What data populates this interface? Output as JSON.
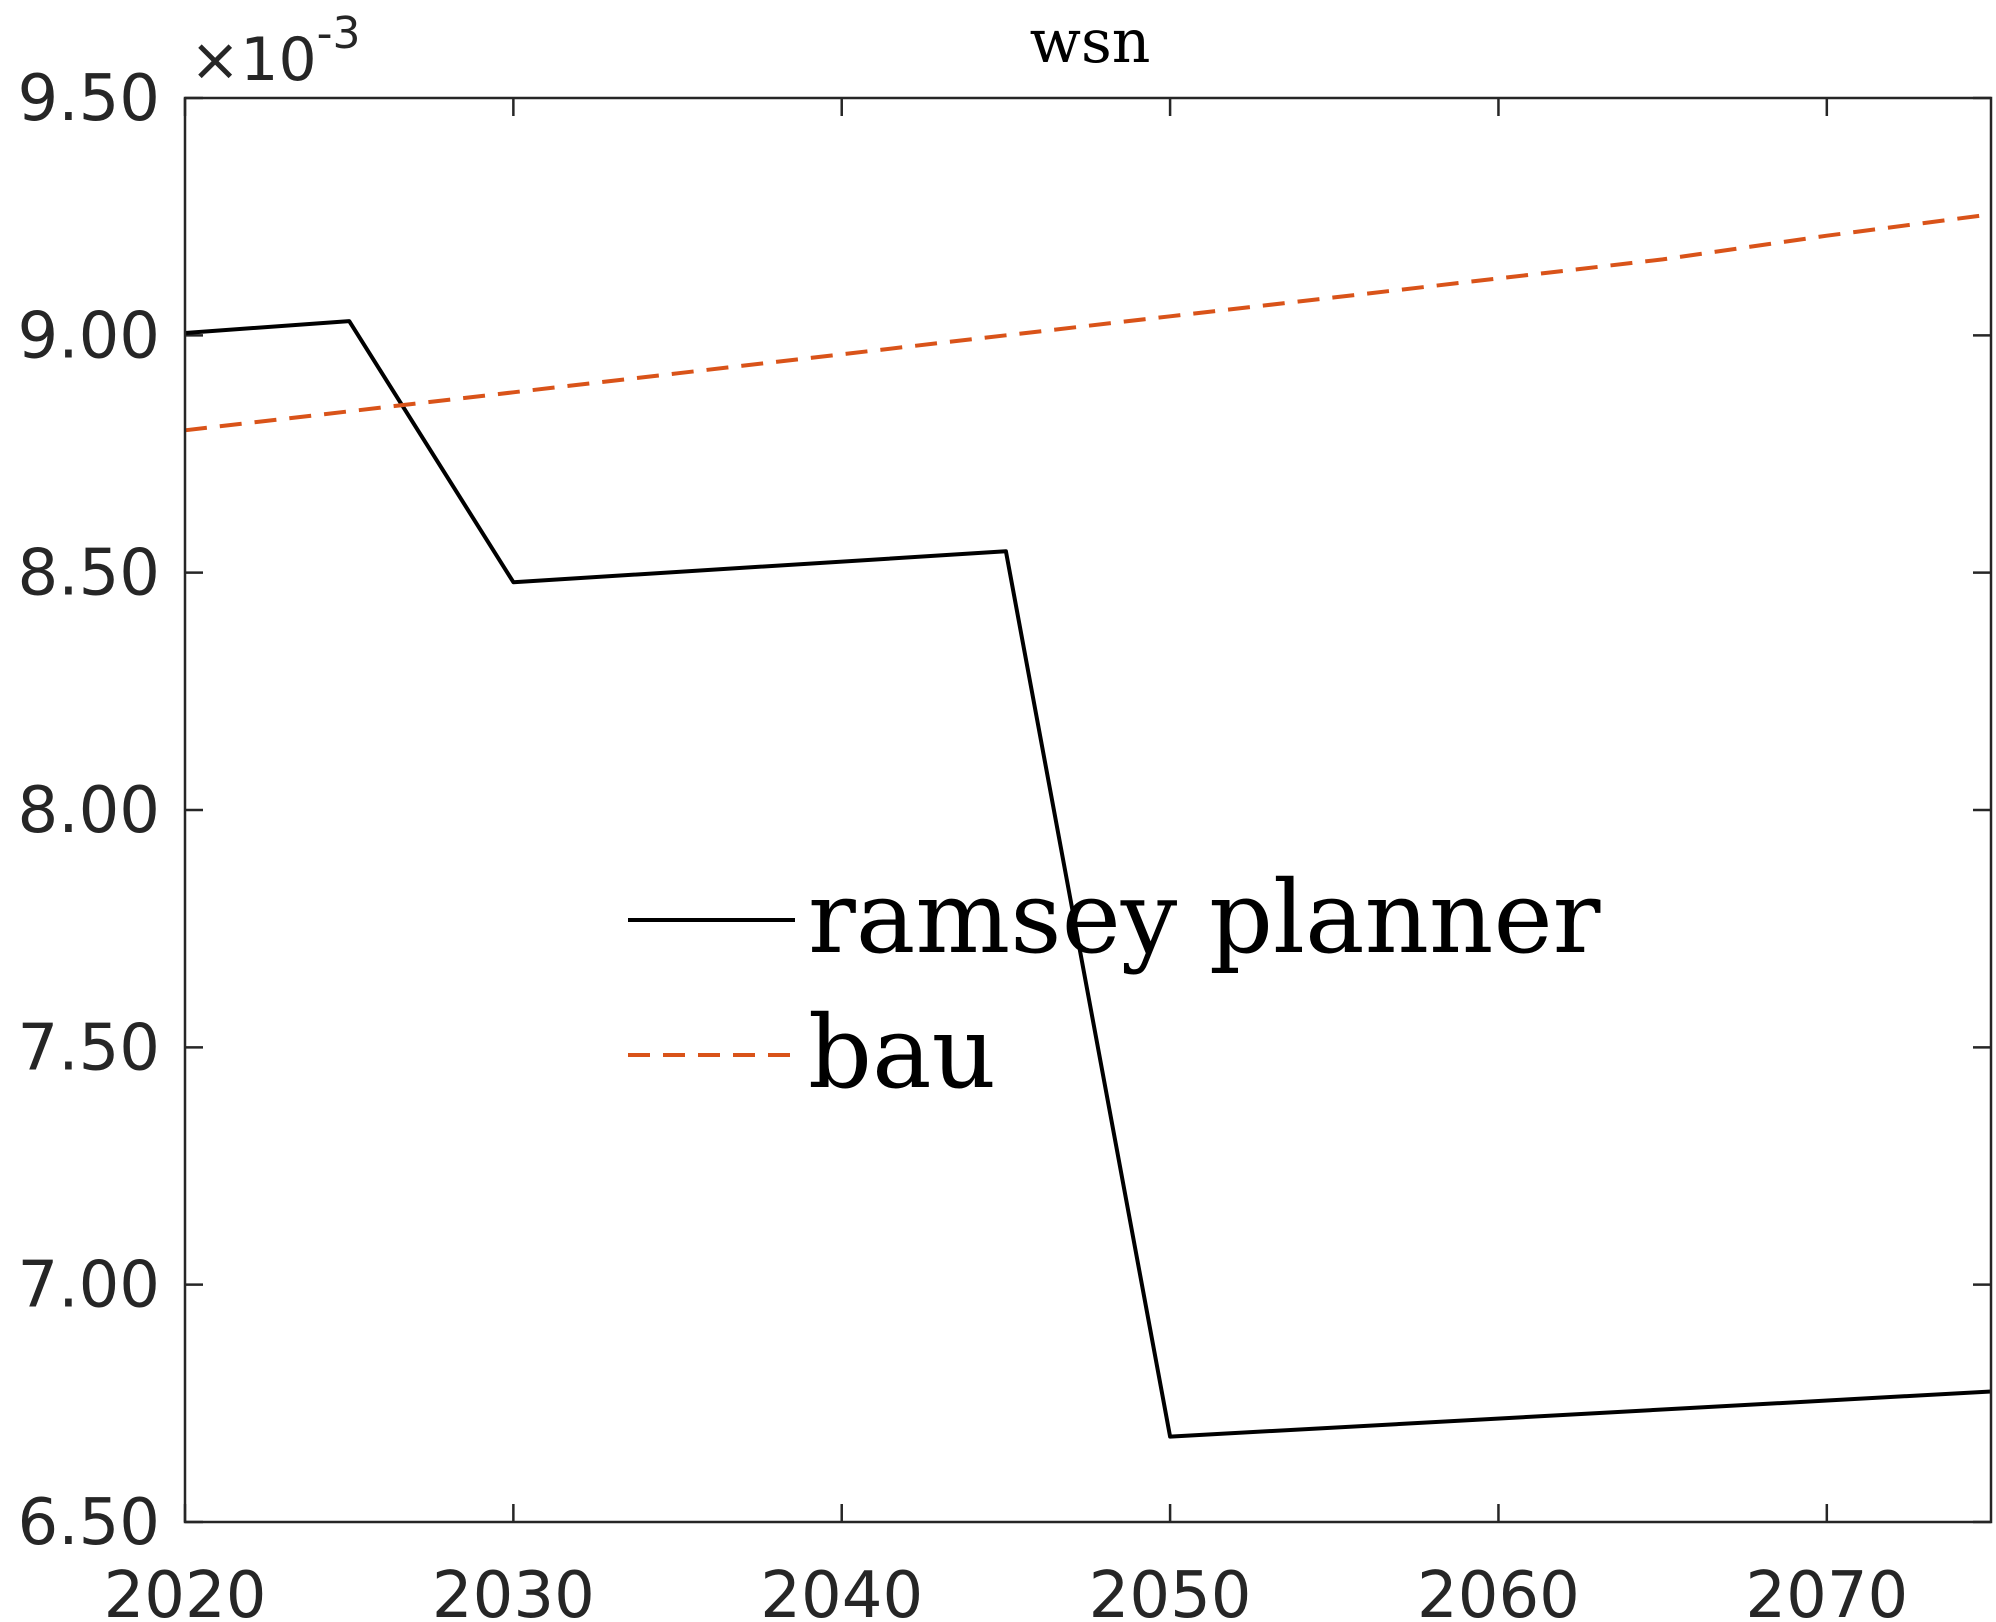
{
  "chart_data": {
    "type": "line",
    "title": "wsn",
    "xlabel": "",
    "ylabel": "",
    "xlim": [
      2020,
      2075
    ],
    "ylim": [
      6.5,
      9.5
    ],
    "y_multiplier": {
      "base": "10",
      "exponent": "-3"
    },
    "xticks": [
      2020,
      2030,
      2040,
      2050,
      2060,
      2070
    ],
    "xtick_labels": [
      "2020",
      "2030",
      "2040",
      "2050",
      "2060",
      "2070"
    ],
    "yticks": [
      6.5,
      7.0,
      7.5,
      8.0,
      8.5,
      9.0,
      9.5
    ],
    "ytick_labels": [
      "6.50",
      "7.00",
      "7.50",
      "8.00",
      "8.50",
      "9.00",
      "9.50"
    ],
    "grid": false,
    "legend_position": "center",
    "series": [
      {
        "name": "ramsey planner",
        "color": "#000000",
        "dash": "solid",
        "x": [
          2020,
          2025,
          2030,
          2045,
          2050,
          2075
        ],
        "y": [
          9.005,
          9.03,
          8.48,
          8.545,
          6.68,
          6.775
        ]
      },
      {
        "name": "bau",
        "color": "#d95319",
        "dash": "dashed",
        "x": [
          2020,
          2025,
          2030,
          2035,
          2040,
          2045,
          2050,
          2055,
          2060,
          2065,
          2070,
          2075
        ],
        "y": [
          8.8,
          8.84,
          8.88,
          8.92,
          8.96,
          9.0,
          9.04,
          9.08,
          9.12,
          9.16,
          9.21,
          9.255
        ]
      }
    ]
  }
}
